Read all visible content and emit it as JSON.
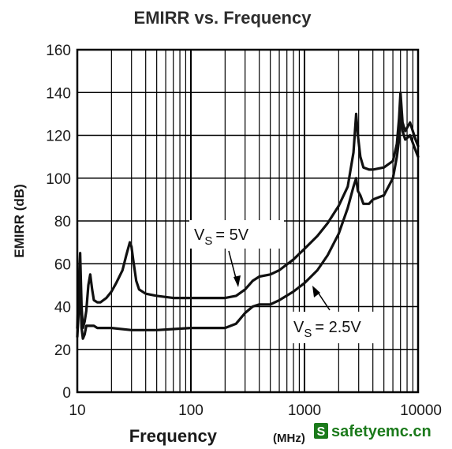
{
  "chart_data": {
    "type": "line",
    "title": "EMIRR vs. Frequency",
    "xlabel": "Frequency",
    "xunit": "(MHz)",
    "ylabel": "EMIRR (dB)",
    "xscale": "log",
    "xlim": [
      10,
      10000
    ],
    "ylim": [
      0,
      160
    ],
    "grid": true,
    "x_ticks": [
      "10",
      "100",
      "1000",
      "10000"
    ],
    "y_ticks": [
      "0",
      "20",
      "40",
      "60",
      "80",
      "100",
      "120",
      "140",
      "160"
    ],
    "annotations": [
      {
        "sub": "S",
        "value": "= 5V"
      },
      {
        "sub": "S",
        "value": "= 2.5V"
      }
    ],
    "series": [
      {
        "x": [
          10,
          10.3,
          10.6,
          10.9,
          11.2,
          11.6,
          12,
          12.5,
          13,
          13.5,
          14,
          15,
          16,
          18,
          20,
          22,
          25,
          27,
          29,
          30,
          31,
          33,
          35,
          40,
          50,
          70,
          100,
          150,
          200,
          250,
          300,
          350,
          400,
          500,
          600,
          800,
          1000,
          1300,
          1600,
          2000,
          2400,
          2700,
          2850,
          2950,
          3100,
          3300,
          3700,
          4000,
          5000,
          6000,
          6500,
          6800,
          7000,
          7300,
          7700,
          8500,
          9500,
          10000
        ],
        "y": [
          30,
          50,
          65,
          40,
          30,
          33,
          38,
          50,
          55,
          48,
          43,
          42,
          42,
          44,
          47,
          51,
          57,
          64,
          70,
          68,
          62,
          52,
          48,
          46,
          45,
          44,
          44,
          44,
          44,
          45,
          48,
          52,
          54,
          55,
          57,
          62,
          67,
          73,
          79,
          87,
          96,
          112,
          130,
          120,
          110,
          105,
          104,
          104,
          105,
          108,
          116,
          128,
          140,
          126,
          122,
          126,
          118,
          115
        ]
      },
      {
        "x": [
          10,
          10.3,
          10.6,
          10.9,
          11.2,
          11.6,
          12,
          13,
          14,
          15,
          20,
          30,
          50,
          100,
          200,
          250,
          300,
          350,
          400,
          500,
          600,
          800,
          1000,
          1300,
          1600,
          2000,
          2400,
          2700,
          2850,
          2950,
          3100,
          3300,
          3700,
          4000,
          5000,
          6000,
          6500,
          6800,
          7000,
          7300,
          7700,
          8500,
          9500,
          10000
        ],
        "y": [
          26,
          38,
          49,
          30,
          25,
          27,
          31,
          31,
          31,
          30,
          30,
          29,
          29,
          30,
          30,
          32,
          37,
          40,
          41,
          41,
          43,
          47,
          51,
          57,
          64,
          74,
          86,
          96,
          100,
          94,
          92,
          88,
          88,
          90,
          92,
          100,
          110,
          118,
          130,
          122,
          118,
          120,
          113,
          110
        ]
      }
    ]
  },
  "watermark": {
    "badge": "S",
    "text": "safetyemc.cn"
  }
}
